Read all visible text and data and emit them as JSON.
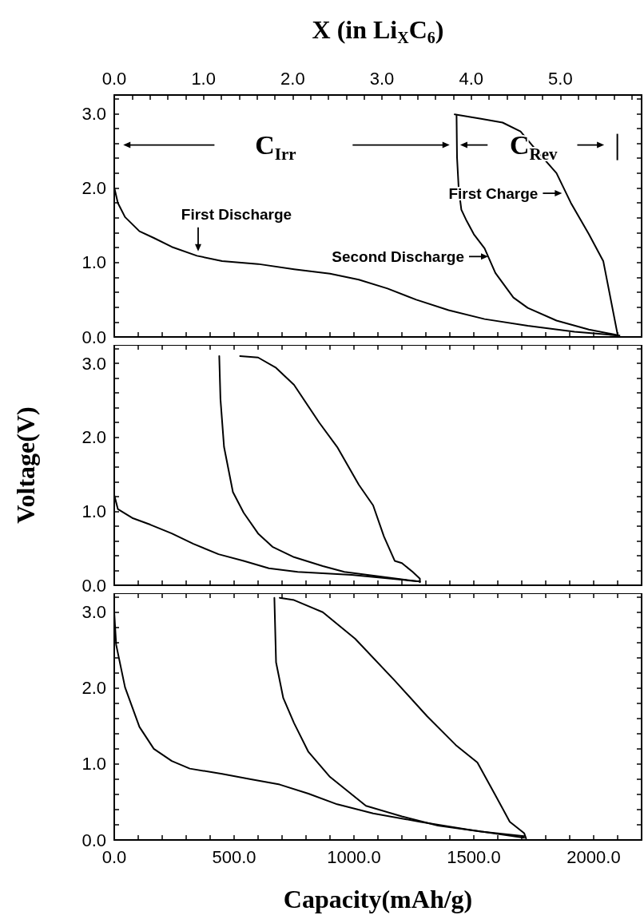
{
  "chart_data": [
    {
      "type": "line",
      "x2label": "X (in Li$_{X}$C$_{6}$)",
      "tick_labels": "y",
      "marker": "none",
      "line_style": "solid",
      "grid": false,
      "xlim": [
        0,
        2200
      ],
      "ylim": [
        0,
        3.25
      ],
      "x2lim": [
        0,
        5.91
      ],
      "xticks": [
        {
          "value": 0,
          "label": null
        },
        {
          "value": 100,
          "label": null
        },
        {
          "value": 200,
          "label": null
        },
        {
          "value": 300,
          "label": null
        },
        {
          "value": 400,
          "label": null
        },
        {
          "value": 500,
          "label": null
        },
        {
          "value": 600,
          "label": null
        },
        {
          "value": 700,
          "label": null
        },
        {
          "value": 800,
          "label": null
        },
        {
          "value": 900,
          "label": null
        },
        {
          "value": 1000,
          "label": null
        },
        {
          "value": 1100,
          "label": null
        },
        {
          "value": 1200,
          "label": null
        },
        {
          "value": 1300,
          "label": null
        },
        {
          "value": 1400,
          "label": null
        },
        {
          "value": 1500,
          "label": null
        },
        {
          "value": 1600,
          "label": null
        },
        {
          "value": 1700,
          "label": null
        },
        {
          "value": 1800,
          "label": null
        },
        {
          "value": 1900,
          "label": null
        },
        {
          "value": 2000,
          "label": null
        },
        {
          "value": 2100,
          "label": null
        }
      ],
      "yticks": [
        {
          "value": 0,
          "label": "0.0"
        },
        {
          "value": 0.2,
          "label": null
        },
        {
          "value": 0.4,
          "label": null
        },
        {
          "value": 0.6,
          "label": null
        },
        {
          "value": 0.8,
          "label": null
        },
        {
          "value": 1,
          "label": "1.0"
        },
        {
          "value": 1.2,
          "label": null
        },
        {
          "value": 1.4,
          "label": null
        },
        {
          "value": 1.6,
          "label": null
        },
        {
          "value": 1.8,
          "label": null
        },
        {
          "value": 2,
          "label": "2.0"
        },
        {
          "value": 2.2,
          "label": null
        },
        {
          "value": 2.4,
          "label": null
        },
        {
          "value": 2.6,
          "label": null
        },
        {
          "value": 2.8,
          "label": null
        },
        {
          "value": 3,
          "label": "3.0"
        },
        {
          "value": 3.2,
          "label": null
        }
      ],
      "x2ticks": [
        {
          "value": 0,
          "label": "0.0"
        },
        {
          "value": 0.2,
          "label": null
        },
        {
          "value": 0.4,
          "label": null
        },
        {
          "value": 0.6,
          "label": null
        },
        {
          "value": 0.8,
          "label": null
        },
        {
          "value": 1,
          "label": "1.0"
        },
        {
          "value": 1.2,
          "label": null
        },
        {
          "value": 1.4,
          "label": null
        },
        {
          "value": 1.6,
          "label": null
        },
        {
          "value": 1.8,
          "label": null
        },
        {
          "value": 2,
          "label": "2.0"
        },
        {
          "value": 2.2,
          "label": null
        },
        {
          "value": 2.4,
          "label": null
        },
        {
          "value": 2.6,
          "label": null
        },
        {
          "value": 2.8,
          "label": null
        },
        {
          "value": 3,
          "label": "3.0"
        },
        {
          "value": 3.2,
          "label": null
        },
        {
          "value": 3.4,
          "label": null
        },
        {
          "value": 3.6,
          "label": null
        },
        {
          "value": 3.8,
          "label": null
        },
        {
          "value": 4,
          "label": "4.0"
        },
        {
          "value": 4.2,
          "label": null
        },
        {
          "value": 4.4,
          "label": null
        },
        {
          "value": 4.6,
          "label": null
        },
        {
          "value": 4.8,
          "label": null
        },
        {
          "value": 5,
          "label": "5.0"
        },
        {
          "value": 5.2,
          "label": null
        },
        {
          "value": 5.4,
          "label": null
        },
        {
          "value": 5.6,
          "label": null
        },
        {
          "value": 5.8,
          "label": null
        }
      ],
      "annotations": [
        "C$_{Irr}$",
        "C$_{Rev}$",
        {
          "text": "First Discharge",
          "x": 350,
          "y": 1.15
        },
        {
          "text": "First Charge",
          "x": 1868,
          "y": 1.93
        },
        {
          "text": "Second Discharge",
          "x": 1560,
          "y": 1.08
        }
      ],
      "series": [
        {
          "color": "#000000",
          "x": [
            0,
            15,
            45,
            105,
            165,
            240,
            345,
            450,
            600,
            750,
            900,
            1020,
            1140,
            1260,
            1395,
            1545,
            1725,
            1920,
            2100
          ],
          "values": [
            2.01,
            1.8,
            1.61,
            1.42,
            1.33,
            1.21,
            1.09,
            1.02,
            0.98,
            0.91,
            0.85,
            0.77,
            0.65,
            0.5,
            0.36,
            0.24,
            0.15,
            0.07,
            0.02
          ]
        },
        {
          "color": "#000000",
          "x": [
            1420,
            1530,
            1620,
            1695,
            1755,
            1845,
            1905,
            1980,
            2040,
            2100
          ],
          "values": [
            2.99,
            2.93,
            2.88,
            2.76,
            2.53,
            2.2,
            1.8,
            1.38,
            1.02,
            0.03
          ]
        },
        {
          "color": "#000000",
          "x": [
            1428,
            1430,
            1437,
            1448,
            1470,
            1500,
            1545,
            1590,
            1665,
            1725,
            1845,
            1980,
            2108
          ],
          "values": [
            2.97,
            2.41,
            1.99,
            1.71,
            1.56,
            1.38,
            1.19,
            0.86,
            0.53,
            0.39,
            0.22,
            0.1,
            0.02
          ]
        }
      ]
    },
    {
      "type": "line",
      "ylabel": "Voltage(V)",
      "tick_labels": "y",
      "marker": "none",
      "line_style": "solid",
      "grid": false,
      "xlim": [
        0,
        2200
      ],
      "ylim": [
        0,
        3.25
      ],
      "xticks": [
        {
          "value": 0,
          "label": null
        },
        {
          "value": 100,
          "label": null
        },
        {
          "value": 200,
          "label": null
        },
        {
          "value": 300,
          "label": null
        },
        {
          "value": 400,
          "label": null
        },
        {
          "value": 500,
          "label": null
        },
        {
          "value": 600,
          "label": null
        },
        {
          "value": 700,
          "label": null
        },
        {
          "value": 800,
          "label": null
        },
        {
          "value": 900,
          "label": null
        },
        {
          "value": 1000,
          "label": null
        },
        {
          "value": 1100,
          "label": null
        },
        {
          "value": 1200,
          "label": null
        },
        {
          "value": 1300,
          "label": null
        },
        {
          "value": 1400,
          "label": null
        },
        {
          "value": 1500,
          "label": null
        },
        {
          "value": 1600,
          "label": null
        },
        {
          "value": 1700,
          "label": null
        },
        {
          "value": 1800,
          "label": null
        },
        {
          "value": 1900,
          "label": null
        },
        {
          "value": 2000,
          "label": null
        },
        {
          "value": 2100,
          "label": null
        }
      ],
      "yticks": [
        {
          "value": 0,
          "label": "0.0"
        },
        {
          "value": 0.2,
          "label": null
        },
        {
          "value": 0.4,
          "label": null
        },
        {
          "value": 0.6,
          "label": null
        },
        {
          "value": 0.8,
          "label": null
        },
        {
          "value": 1,
          "label": "1.0"
        },
        {
          "value": 1.2,
          "label": null
        },
        {
          "value": 1.4,
          "label": null
        },
        {
          "value": 1.6,
          "label": null
        },
        {
          "value": 1.8,
          "label": null
        },
        {
          "value": 2,
          "label": "2.0"
        },
        {
          "value": 2.2,
          "label": null
        },
        {
          "value": 2.4,
          "label": null
        },
        {
          "value": 2.6,
          "label": null
        },
        {
          "value": 2.8,
          "label": null
        },
        {
          "value": 3,
          "label": "3.0"
        },
        {
          "value": 3.2,
          "label": null
        }
      ],
      "series": [
        {
          "color": "#000000",
          "x": [
            0,
            0,
            15,
            75,
            150,
            240,
            330,
            435,
            540,
            645,
            765,
            990,
            1275
          ],
          "values": [
            1.59,
            1.22,
            1.03,
            0.91,
            0.82,
            0.7,
            0.56,
            0.42,
            0.33,
            0.23,
            0.18,
            0.14,
            0.05
          ]
        },
        {
          "color": "#000000",
          "x": [
            438,
            443,
            458,
            495,
            540,
            600,
            660,
            750,
            870,
            960,
            1275
          ],
          "values": [
            3.1,
            2.52,
            1.87,
            1.26,
            0.98,
            0.7,
            0.52,
            0.38,
            0.26,
            0.18,
            0.05
          ]
        },
        {
          "color": "#000000",
          "x": [
            525,
            600,
            675,
            750,
            855,
            930,
            1020,
            1080,
            1125,
            1170,
            1200,
            1245,
            1275,
            1275
          ],
          "values": [
            3.1,
            3.08,
            2.94,
            2.71,
            2.2,
            1.87,
            1.36,
            1.08,
            0.66,
            0.33,
            0.3,
            0.18,
            0.09,
            0.04
          ]
        }
      ]
    },
    {
      "type": "line",
      "xlabel": "Capacity(mAh/g)",
      "marker": "none",
      "line_style": "solid",
      "grid": false,
      "xlim": [
        0,
        2200
      ],
      "ylim": [
        0,
        3.25
      ],
      "xticks": [
        {
          "value": 0,
          "label": "0.0"
        },
        {
          "value": 100,
          "label": null
        },
        {
          "value": 200,
          "label": null
        },
        {
          "value": 300,
          "label": null
        },
        {
          "value": 400,
          "label": null
        },
        {
          "value": 500,
          "label": "500.0"
        },
        {
          "value": 600,
          "label": null
        },
        {
          "value": 700,
          "label": null
        },
        {
          "value": 800,
          "label": null
        },
        {
          "value": 900,
          "label": null
        },
        {
          "value": 1000,
          "label": "1000.0"
        },
        {
          "value": 1100,
          "label": null
        },
        {
          "value": 1200,
          "label": null
        },
        {
          "value": 1300,
          "label": null
        },
        {
          "value": 1400,
          "label": null
        },
        {
          "value": 1500,
          "label": "1500.0"
        },
        {
          "value": 1600,
          "label": null
        },
        {
          "value": 1700,
          "label": null
        },
        {
          "value": 1800,
          "label": null
        },
        {
          "value": 1900,
          "label": null
        },
        {
          "value": 2000,
          "label": "2000.0"
        },
        {
          "value": 2100,
          "label": null
        }
      ],
      "yticks": [
        {
          "value": 0,
          "label": "0.0"
        },
        {
          "value": 0.2,
          "label": null
        },
        {
          "value": 0.4,
          "label": null
        },
        {
          "value": 0.6,
          "label": null
        },
        {
          "value": 0.8,
          "label": null
        },
        {
          "value": 1,
          "label": "1.0"
        },
        {
          "value": 1.2,
          "label": null
        },
        {
          "value": 1.4,
          "label": null
        },
        {
          "value": 1.6,
          "label": null
        },
        {
          "value": 1.8,
          "label": null
        },
        {
          "value": 2,
          "label": "2.0"
        },
        {
          "value": 2.2,
          "label": null
        },
        {
          "value": 2.4,
          "label": null
        },
        {
          "value": 2.6,
          "label": null
        },
        {
          "value": 2.8,
          "label": null
        },
        {
          "value": 3,
          "label": "3.0"
        },
        {
          "value": 3.2,
          "label": null
        }
      ],
      "series": [
        {
          "color": "#000000",
          "x": [
            0,
            8,
            45,
            105,
            165,
            240,
            315,
            450,
            570,
            690,
            810,
            930,
            1080,
            1275,
            1470,
            1710
          ],
          "values": [
            3.0,
            2.57,
            2.01,
            1.49,
            1.2,
            1.04,
            0.94,
            0.87,
            0.8,
            0.73,
            0.61,
            0.47,
            0.35,
            0.24,
            0.14,
            0.03
          ]
        },
        {
          "color": "#000000",
          "x": [
            668,
            675,
            705,
            750,
            810,
            900,
            1050,
            1200,
            1350,
            1530,
            1710
          ],
          "values": [
            3.19,
            2.34,
            1.87,
            1.54,
            1.16,
            0.83,
            0.45,
            0.31,
            0.19,
            0.11,
            0.05
          ]
        },
        {
          "color": "#000000",
          "x": [
            690,
            750,
            870,
            1005,
            1170,
            1305,
            1425,
            1515,
            1590,
            1650,
            1710,
            1718
          ],
          "values": [
            3.19,
            3.16,
            3.0,
            2.65,
            2.1,
            1.63,
            1.25,
            1.02,
            0.59,
            0.24,
            0.09,
            0.02
          ]
        }
      ]
    }
  ]
}
